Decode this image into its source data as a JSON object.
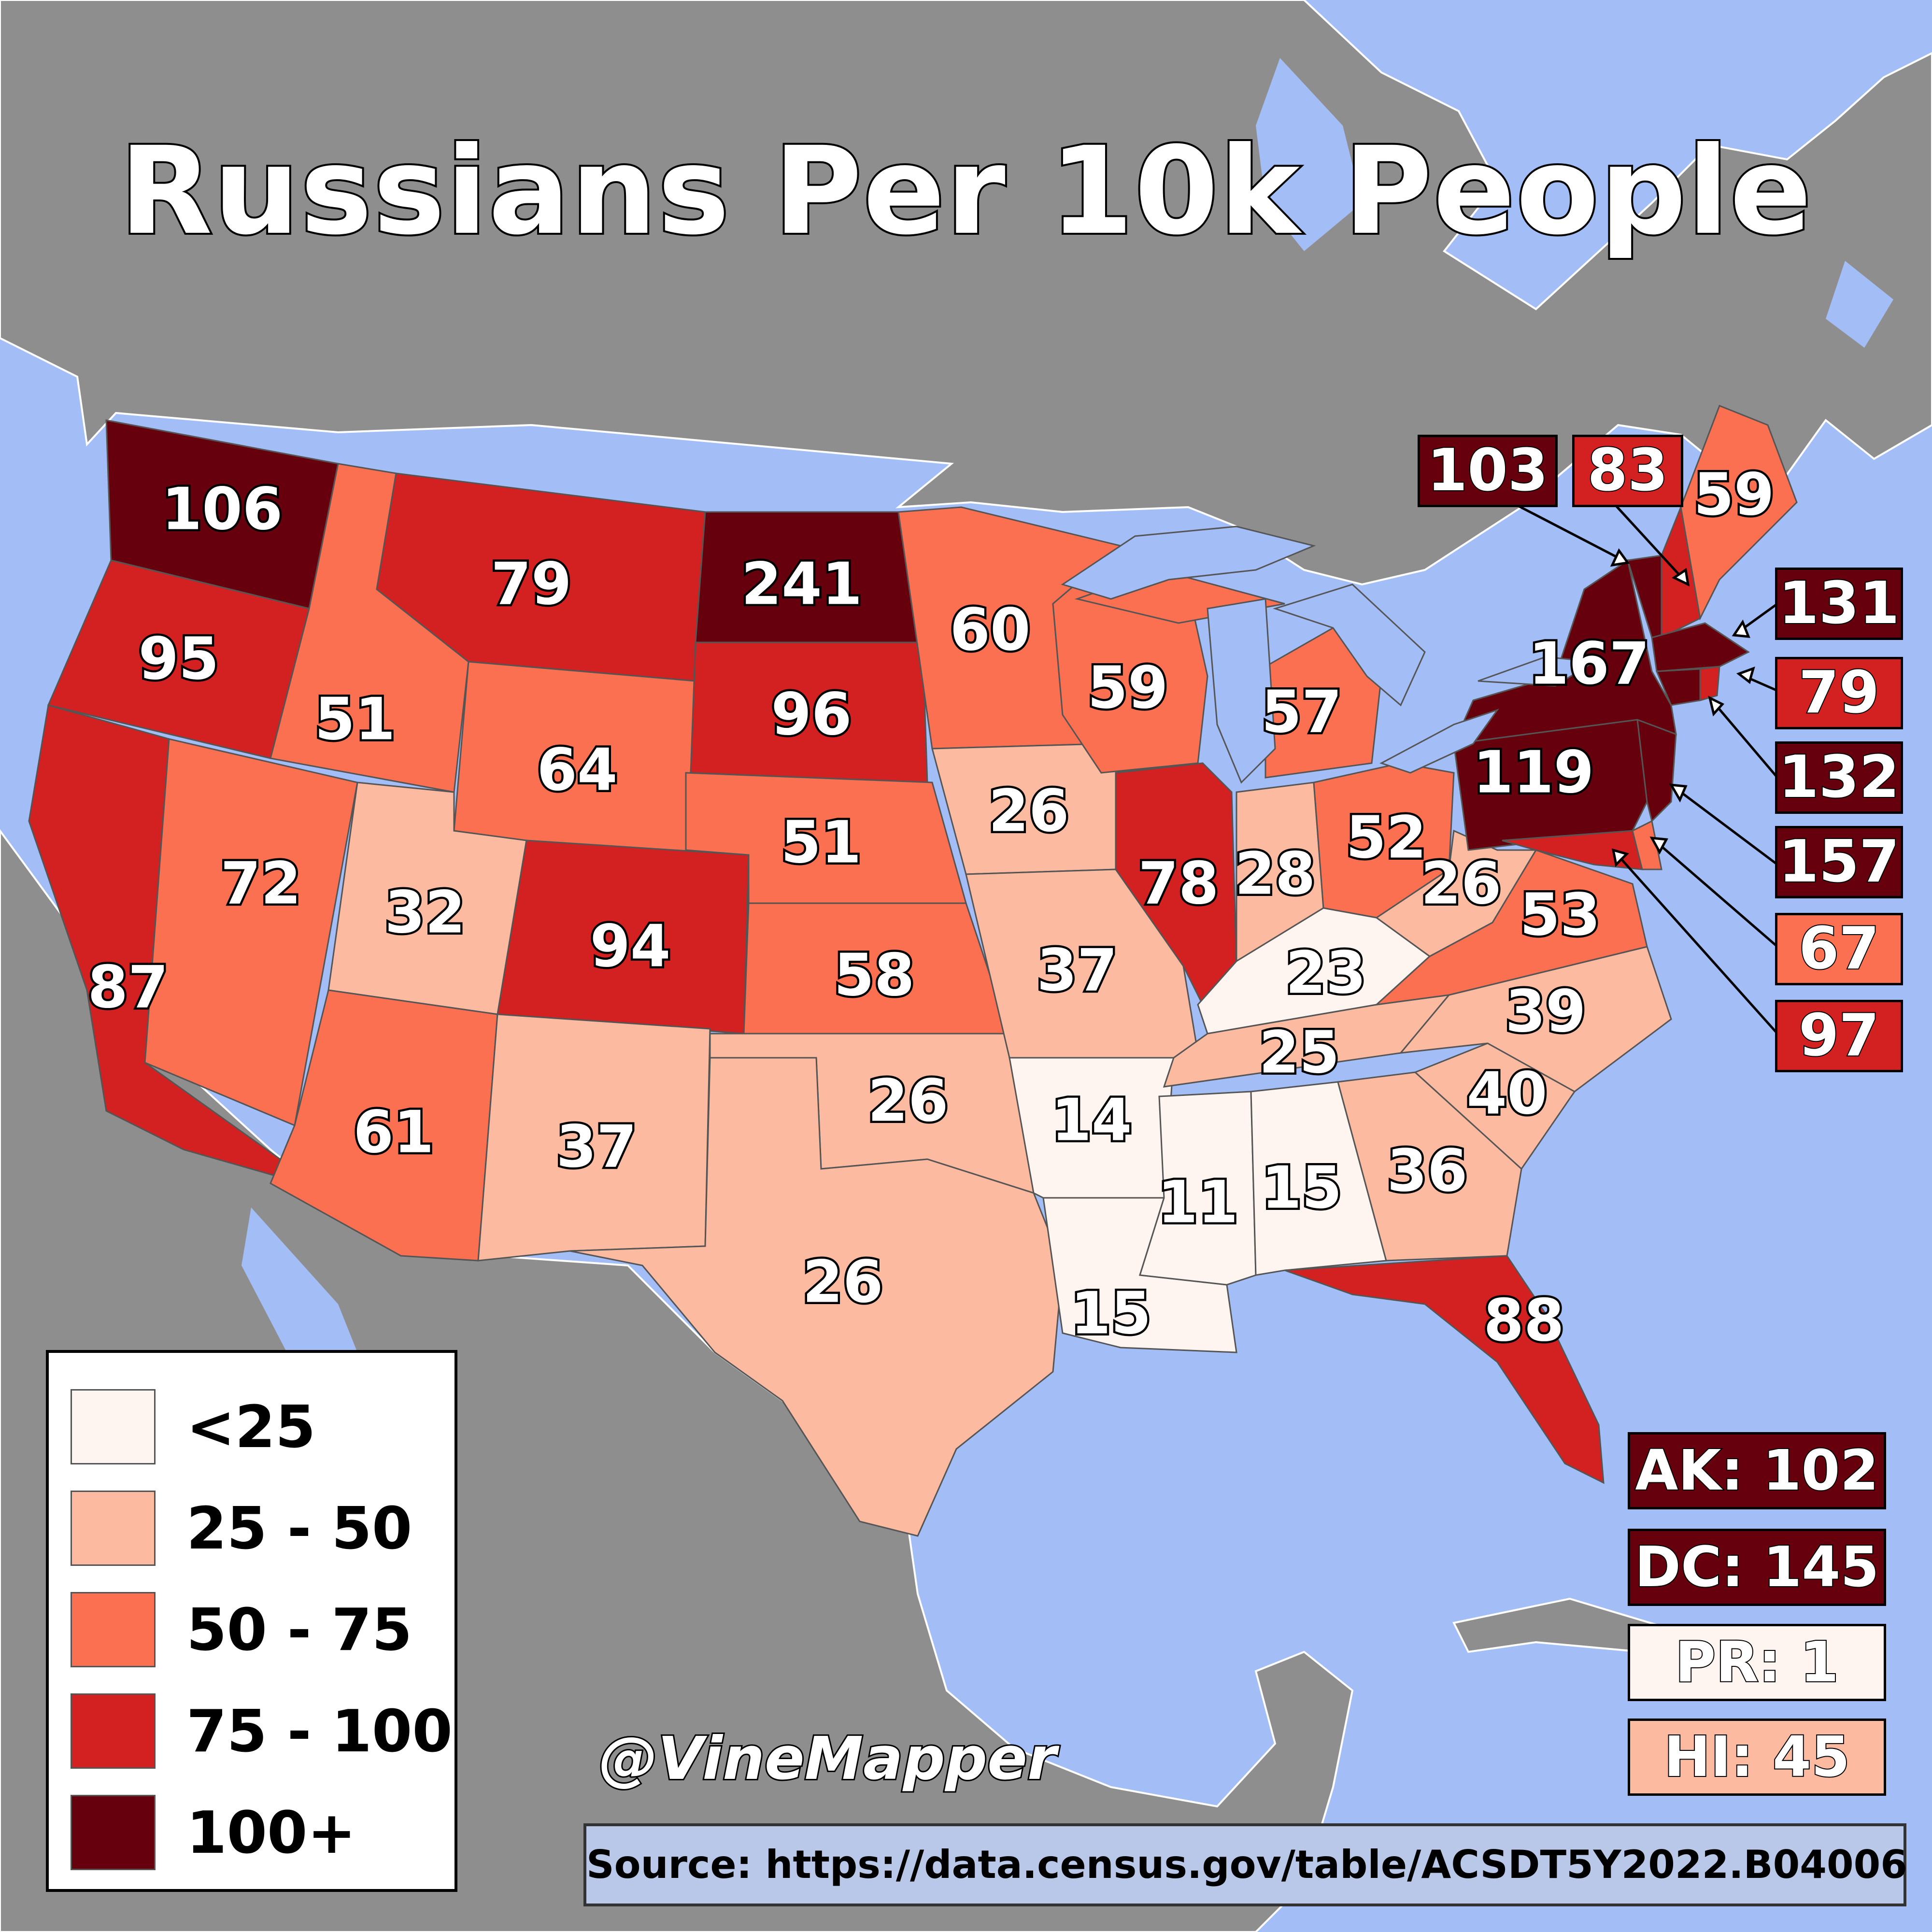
{
  "title": "Russians Per 10k People",
  "legend": [
    {
      "label": "<25",
      "color": "#fff5f0"
    },
    {
      "label": "25 - 50",
      "color": "#fcbba1"
    },
    {
      "label": "50 - 75",
      "color": "#fb7050"
    },
    {
      "label": "75 - 100",
      "color": "#d32020"
    },
    {
      "label": "100+",
      "color": "#67000d"
    }
  ],
  "credit": "@VineMapper",
  "source": "Source: https://data.census.gov/table/ACSDT5Y2022.B04006",
  "states": [
    {
      "id": "WA",
      "value": "106"
    },
    {
      "id": "OR",
      "value": "95"
    },
    {
      "id": "CA",
      "value": "87"
    },
    {
      "id": "ID",
      "value": "51"
    },
    {
      "id": "NV",
      "value": "72"
    },
    {
      "id": "MT",
      "value": "79"
    },
    {
      "id": "WY",
      "value": "64"
    },
    {
      "id": "UT",
      "value": "32"
    },
    {
      "id": "AZ",
      "value": "61"
    },
    {
      "id": "CO",
      "value": "94"
    },
    {
      "id": "NM",
      "value": "37"
    },
    {
      "id": "ND",
      "value": "241"
    },
    {
      "id": "SD",
      "value": "96"
    },
    {
      "id": "NE",
      "value": "51"
    },
    {
      "id": "KS",
      "value": "58"
    },
    {
      "id": "OK",
      "value": "26"
    },
    {
      "id": "TX",
      "value": "26"
    },
    {
      "id": "MN",
      "value": "60"
    },
    {
      "id": "IA",
      "value": "26"
    },
    {
      "id": "MO",
      "value": "37"
    },
    {
      "id": "AR",
      "value": "14"
    },
    {
      "id": "LA",
      "value": "15"
    },
    {
      "id": "WI",
      "value": "59"
    },
    {
      "id": "IL",
      "value": "78"
    },
    {
      "id": "MI",
      "value": "57"
    },
    {
      "id": "IN",
      "value": "28"
    },
    {
      "id": "OH",
      "value": "52"
    },
    {
      "id": "KY",
      "value": "23"
    },
    {
      "id": "TN",
      "value": "25"
    },
    {
      "id": "MS",
      "value": "11"
    },
    {
      "id": "AL",
      "value": "15"
    },
    {
      "id": "GA",
      "value": "36"
    },
    {
      "id": "FL",
      "value": "88"
    },
    {
      "id": "SC",
      "value": "40"
    },
    {
      "id": "NC",
      "value": "39"
    },
    {
      "id": "VA",
      "value": "53"
    },
    {
      "id": "WV",
      "value": "26"
    },
    {
      "id": "PA",
      "value": "119"
    },
    {
      "id": "NY",
      "value": "167"
    },
    {
      "id": "ME",
      "value": "59"
    }
  ],
  "callouts": [
    {
      "id": "VT",
      "value": "103"
    },
    {
      "id": "NH",
      "value": "83"
    },
    {
      "id": "MA",
      "value": "131"
    },
    {
      "id": "RI",
      "value": "79"
    },
    {
      "id": "CT",
      "value": "132"
    },
    {
      "id": "NJ",
      "value": "157"
    },
    {
      "id": "DE",
      "value": "67"
    },
    {
      "id": "MD",
      "value": "97"
    }
  ],
  "extras": [
    {
      "id": "AK",
      "text": "AK: 102",
      "color": "#67000d"
    },
    {
      "id": "DC",
      "text": "DC: 145",
      "color": "#67000d"
    },
    {
      "id": "PR",
      "text": "PR: 1",
      "color": "#fff5f0"
    },
    {
      "id": "HI",
      "text": "HI: 45",
      "color": "#fcbba1"
    }
  ]
}
